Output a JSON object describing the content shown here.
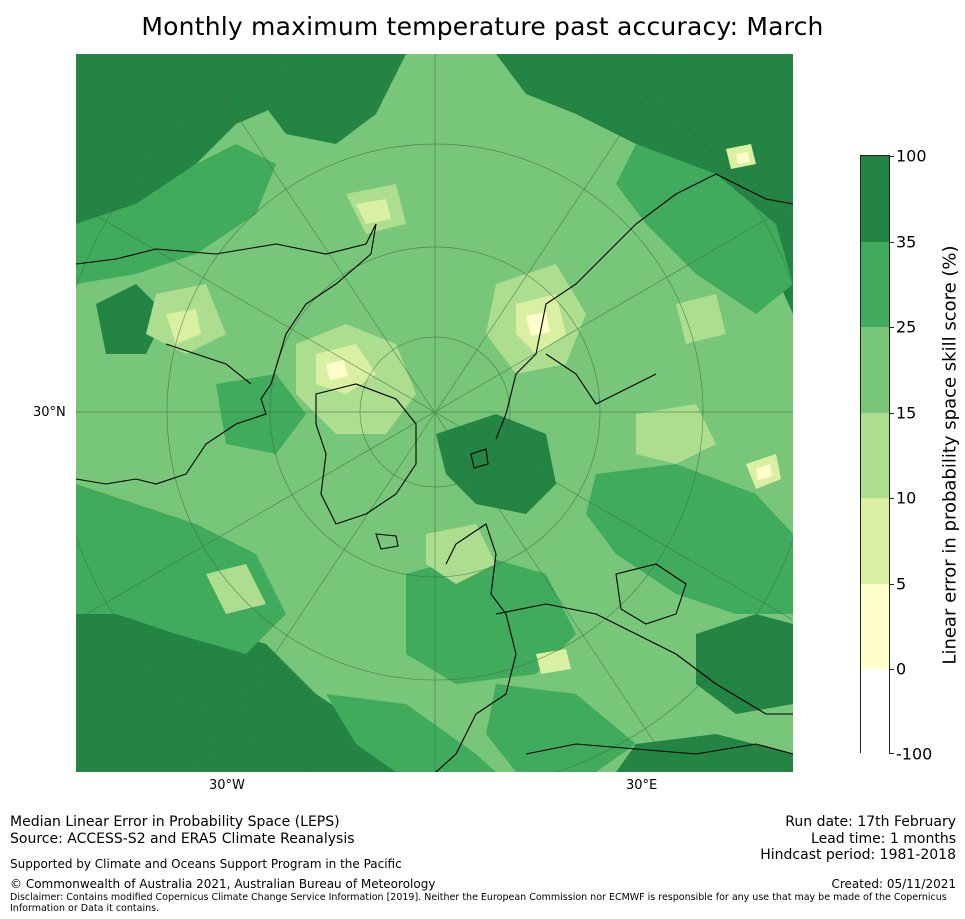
{
  "title": "Monthly maximum temperature past accuracy: March",
  "map": {
    "axis_labels": {
      "lat": "30°N",
      "lon_west": "30°W",
      "lon_east": "30°E"
    },
    "palette": {
      "c0": "#ffffff",
      "c5": "#ffffcc",
      "c10": "#d9f0a3",
      "c15": "#addd8e",
      "c25": "#78c679",
      "c35": "#41ab5d",
      "c100": "#238443"
    }
  },
  "colorbar": {
    "title": "Linear error in probability space skill score (%)",
    "tick_labels": [
      "100",
      "35",
      "25",
      "15",
      "10",
      "5",
      "0",
      "-100"
    ],
    "bands": [
      {
        "from": 35,
        "to": 100,
        "color": "#238443"
      },
      {
        "from": 25,
        "to": 35,
        "color": "#41ab5d"
      },
      {
        "from": 15,
        "to": 25,
        "color": "#78c679"
      },
      {
        "from": 10,
        "to": 15,
        "color": "#addd8e"
      },
      {
        "from": 5,
        "to": 10,
        "color": "#d9f0a3"
      },
      {
        "from": 0,
        "to": 5,
        "color": "#ffffcc"
      },
      {
        "from": -100,
        "to": 0,
        "color": "#ffffff"
      }
    ]
  },
  "footer": {
    "method": "Median Linear Error in Probability Space (LEPS)",
    "source": "Source: ACCESS-S2 and ERA5 Climate Reanalysis",
    "support": "Supported by Climate and Oceans Support Program in the Pacific",
    "copyright": "© Commonwealth of Australia 2021, Australian Bureau of Meteorology",
    "disclaimer": "Disclaimer: Contains modified Copernicus Climate Change Service Information [2019]. Neither the European Commission nor ECMWF is responsible for any use that may be made of the Copernicus Information or Data it contains.",
    "run_date": "Run date: 17th February",
    "lead_time": "Lead time: 1 months",
    "hindcast": "Hindcast period: 1981-2018",
    "created": "Created: 05/11/2021"
  }
}
